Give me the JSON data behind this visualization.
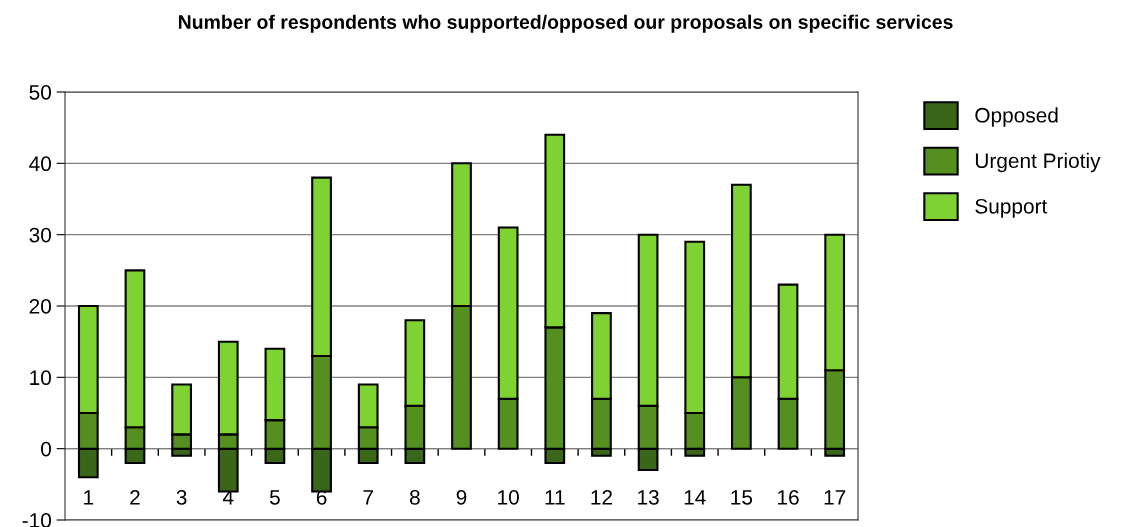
{
  "chart_data": {
    "type": "bar",
    "title": "Number of respondents who supported/opposed our proposals on specific services",
    "categories": [
      "1",
      "2",
      "3",
      "4",
      "5",
      "6",
      "7",
      "8",
      "9",
      "10",
      "11",
      "12",
      "13",
      "14",
      "15",
      "16",
      "17"
    ],
    "series": [
      {
        "name": "Opposed",
        "color": "#3a6619",
        "values": [
          -4,
          -2,
          -1,
          -6,
          -2,
          -6,
          -2,
          -2,
          0,
          0,
          -2,
          -1,
          -3,
          -1,
          0,
          0,
          -1
        ]
      },
      {
        "name": "Urgent Priotiy",
        "color": "#548f20",
        "values": [
          5,
          3,
          2,
          2,
          4,
          13,
          3,
          6,
          20,
          7,
          17,
          7,
          6,
          5,
          10,
          7,
          11
        ]
      },
      {
        "name": "Support",
        "color": "#7ed232",
        "values": [
          15,
          22,
          7,
          13,
          10,
          25,
          6,
          12,
          20,
          24,
          27,
          12,
          24,
          24,
          27,
          16,
          19
        ]
      }
    ],
    "stacked": true,
    "ylim": [
      -10,
      50
    ],
    "yticks": [
      -10,
      0,
      10,
      20,
      30,
      40,
      50
    ],
    "grid": "y",
    "legend": "top right"
  }
}
